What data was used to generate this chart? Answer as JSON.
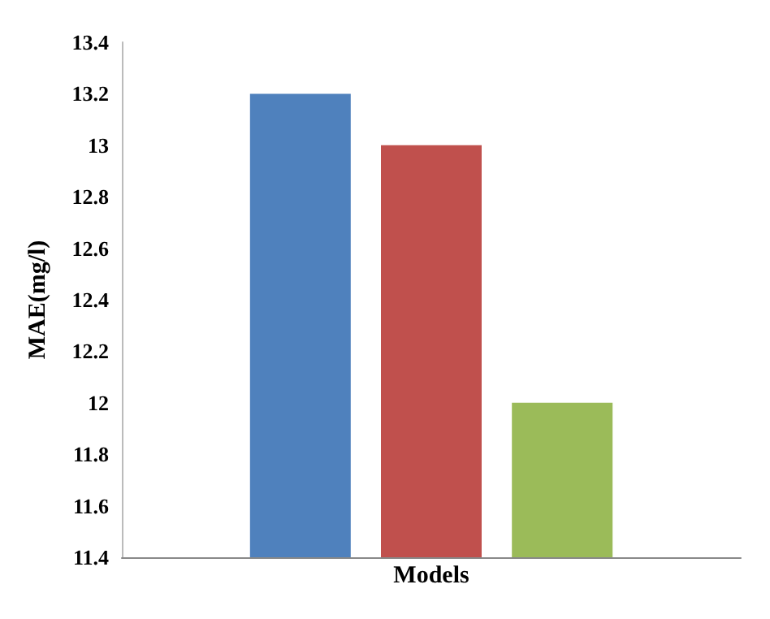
{
  "chart_data": {
    "type": "bar",
    "ylabel": "MAE(mg/l)",
    "categories": [
      "Models"
    ],
    "series": [
      {
        "color": "#4f81bd",
        "values": [
          13.2
        ]
      },
      {
        "color": "#c0504d",
        "values": [
          13.0
        ]
      },
      {
        "color": "#9bbb59",
        "values": [
          12.0
        ]
      }
    ],
    "ylim": [
      11.4,
      13.4
    ],
    "yticks": [
      11.4,
      11.6,
      11.8,
      12,
      12.2,
      12.4,
      12.6,
      12.8,
      13,
      13.2,
      13.4
    ],
    "grid": false
  }
}
